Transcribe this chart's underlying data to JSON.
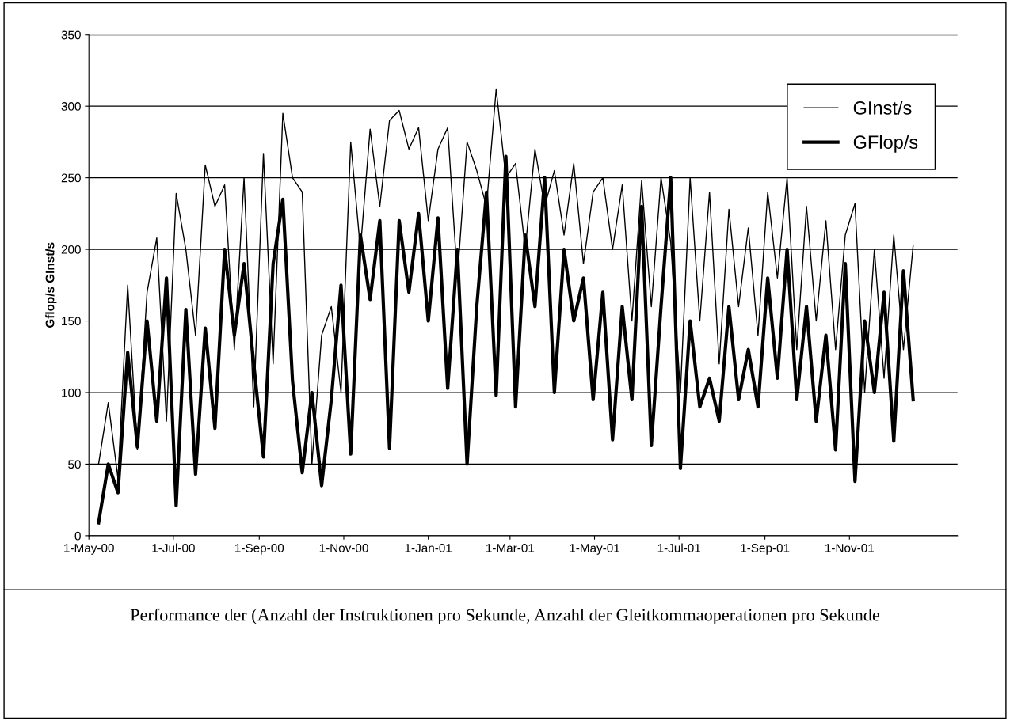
{
  "chart_data": {
    "type": "line",
    "ylabel": "Gflop/s GInst/s",
    "annotations": [
      "Performance der (Anzahl der Instruktionen pro Sekunde, Anzahl der Gleitkommaoperationen pro Sekunde"
    ],
    "x": [
      "2000-05-08",
      "2000-05-15",
      "2000-05-22",
      "2000-05-29",
      "2000-06-05",
      "2000-06-12",
      "2000-06-19",
      "2000-06-26",
      "2000-07-03",
      "2000-07-10",
      "2000-07-17",
      "2000-07-24",
      "2000-07-31",
      "2000-08-07",
      "2000-08-14",
      "2000-08-21",
      "2000-08-28",
      "2000-09-04",
      "2000-09-11",
      "2000-09-18",
      "2000-09-25",
      "2000-10-02",
      "2000-10-09",
      "2000-10-16",
      "2000-10-23",
      "2000-10-30",
      "2000-11-06",
      "2000-11-13",
      "2000-11-20",
      "2000-11-27",
      "2000-12-04",
      "2000-12-11",
      "2000-12-18",
      "2000-12-25",
      "2001-01-01",
      "2001-01-08",
      "2001-01-15",
      "2001-01-22",
      "2001-01-29",
      "2001-02-05",
      "2001-02-12",
      "2001-02-19",
      "2001-02-26",
      "2001-03-05",
      "2001-03-12",
      "2001-03-19",
      "2001-03-26",
      "2001-04-02",
      "2001-04-09",
      "2001-04-16",
      "2001-04-23",
      "2001-04-30",
      "2001-05-07",
      "2001-05-14",
      "2001-05-21",
      "2001-05-28",
      "2001-06-04",
      "2001-06-11",
      "2001-06-18",
      "2001-06-25",
      "2001-07-02",
      "2001-07-09",
      "2001-07-16",
      "2001-07-23",
      "2001-07-30",
      "2001-08-06",
      "2001-08-13",
      "2001-08-20",
      "2001-08-27",
      "2001-09-03",
      "2001-09-10",
      "2001-09-17",
      "2001-09-24",
      "2001-10-01",
      "2001-10-08",
      "2001-10-15",
      "2001-10-22",
      "2001-10-29",
      "2001-11-05",
      "2001-11-12",
      "2001-11-19",
      "2001-11-26",
      "2001-12-03",
      "2001-12-10",
      "2001-12-17"
    ],
    "series": [
      {
        "name": "GInst/s",
        "color": "#000000",
        "values": [
          50,
          93,
          40,
          175,
          60,
          170,
          208,
          80,
          239,
          200,
          140,
          259,
          230,
          245,
          130,
          250,
          90,
          267,
          120,
          295,
          250,
          240,
          50,
          140,
          160,
          100,
          275,
          200,
          284,
          230,
          290,
          297,
          270,
          285,
          220,
          270,
          285,
          180,
          275,
          255,
          230,
          312,
          250,
          260,
          200,
          270,
          230,
          255,
          210,
          260,
          190,
          240,
          250,
          200,
          245,
          150,
          248,
          160,
          250,
          205,
          100,
          250,
          150,
          240,
          120,
          228,
          160,
          215,
          140,
          240,
          180,
          250,
          130,
          230,
          150,
          220,
          130,
          210,
          232,
          100,
          200,
          110,
          210,
          130,
          203
        ]
      },
      {
        "name": "GFlop/s",
        "color": "#000000",
        "values": [
          9,
          50,
          30,
          128,
          62,
          150,
          80,
          180,
          21,
          158,
          43,
          145,
          75,
          200,
          140,
          190,
          120,
          55,
          190,
          235,
          108,
          44,
          100,
          35,
          95,
          175,
          57,
          210,
          165,
          220,
          61,
          220,
          170,
          225,
          150,
          222,
          103,
          200,
          50,
          160,
          240,
          98,
          265,
          90,
          210,
          160,
          250,
          100,
          200,
          150,
          180,
          95,
          170,
          67,
          160,
          95,
          230,
          63,
          160,
          250,
          47,
          150,
          90,
          110,
          80,
          160,
          95,
          130,
          90,
          180,
          110,
          200,
          95,
          160,
          80,
          140,
          60,
          190,
          38,
          150,
          100,
          170,
          66,
          185,
          95
        ]
      }
    ],
    "xlim": [
      "2000-05-01",
      "2002-01-18"
    ],
    "xticks": [
      {
        "value": "2000-05-01",
        "label": "1-May-00"
      },
      {
        "value": "2000-07-01",
        "label": "1-Jul-00"
      },
      {
        "value": "2000-09-01",
        "label": "1-Sep-00"
      },
      {
        "value": "2000-11-01",
        "label": "1-Nov-00"
      },
      {
        "value": "2001-01-01",
        "label": "1-Jan-01"
      },
      {
        "value": "2001-03-01",
        "label": "1-Mar-01"
      },
      {
        "value": "2001-05-01",
        "label": "1-May-01"
      },
      {
        "value": "2001-07-01",
        "label": "1-Jul-01"
      },
      {
        "value": "2001-09-01",
        "label": "1-Sep-01"
      },
      {
        "value": "2001-11-01",
        "label": "1-Nov-01"
      }
    ],
    "ylim": [
      0,
      350
    ],
    "yticks": [
      0,
      50,
      100,
      150,
      200,
      250,
      300,
      350
    ],
    "grid": "y",
    "legend": "top right"
  }
}
